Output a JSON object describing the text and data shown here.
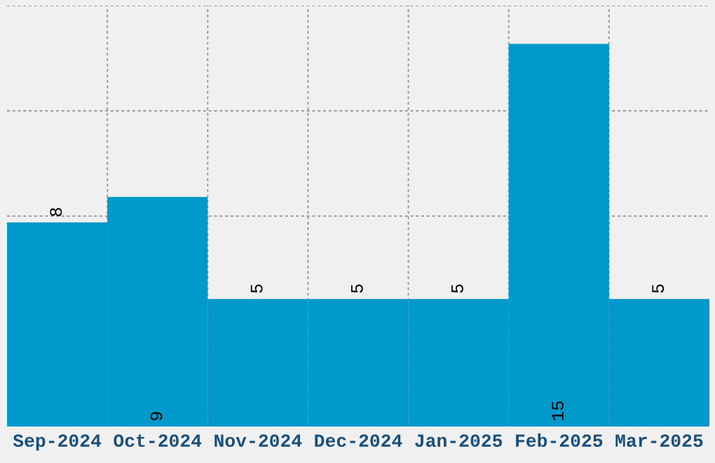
{
  "chart_data": {
    "type": "bar",
    "categories": [
      "Sep-2024",
      "Oct-2024",
      "Nov-2024",
      "Dec-2024",
      "Jan-2025",
      "Feb-2025",
      "Mar-2025"
    ],
    "values": [
      8,
      9,
      5,
      5,
      5,
      15,
      5
    ],
    "color": "#0099cc",
    "ylim": [
      0,
      16.5
    ],
    "tick_labels": "x",
    "grid": true,
    "data_labels": true
  }
}
